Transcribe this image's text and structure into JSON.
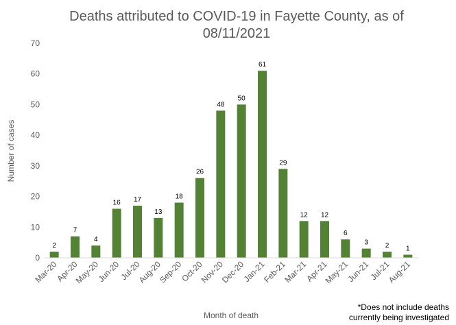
{
  "chart_data": {
    "type": "bar",
    "title": "Deaths attributed to COVID-19 in Fayette County, as of 08/11/2021",
    "xlabel": "Month of death",
    "ylabel": "Number of cases",
    "ylim": [
      0,
      70
    ],
    "yticks": [
      0,
      10,
      20,
      30,
      40,
      50,
      60,
      70
    ],
    "grid": false,
    "legend": "none",
    "bar_color": "#548235",
    "categories": [
      "Mar-20",
      "Apr-20",
      "May-20",
      "Jun-20",
      "Jul-20",
      "Aug-20",
      "Sep-20",
      "Oct-20",
      "Nov-20",
      "Dec-20",
      "Jan-21",
      "Feb-21",
      "Mar-21",
      "Apr-21",
      "May-21",
      "Jun-21",
      "Jul-21",
      "Aug-21"
    ],
    "values": [
      2,
      7,
      4,
      16,
      17,
      13,
      18,
      26,
      48,
      50,
      61,
      29,
      12,
      12,
      6,
      3,
      2,
      1
    ],
    "annotation": "*Does not include deaths currently being investigated"
  }
}
